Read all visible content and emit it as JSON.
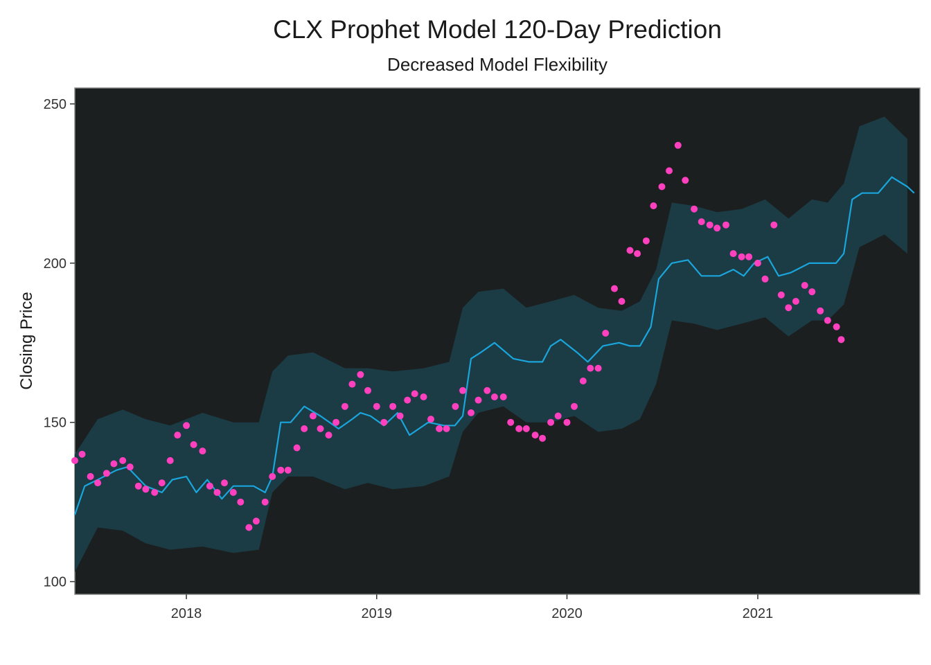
{
  "chart_data": {
    "type": "line",
    "title": "CLX Prophet Model 120-Day Prediction",
    "subtitle": "Decreased Model Flexibility",
    "ylabel": "Closing Price",
    "xlabel": "",
    "xlim": [
      "2017-06-01",
      "2021-11-08"
    ],
    "ylim": [
      96,
      255
    ],
    "x_ticks": [
      "2018-01-01",
      "2019-01-01",
      "2020-01-01",
      "2021-01-01"
    ],
    "x_tick_labels": [
      "2018",
      "2019",
      "2020",
      "2021"
    ],
    "y_ticks": [
      100,
      150,
      200,
      250
    ],
    "grid": false,
    "legend": "none",
    "colors": {
      "panel": "#1c1f1f",
      "band": "#1b3b45",
      "line": "#1aa6dc",
      "points": "#ff40bf",
      "axis": "#888888"
    },
    "series": [
      {
        "kind": "band",
        "x": [
          "2017-06-01",
          "2017-07-15",
          "2017-09-01",
          "2017-10-15",
          "2017-12-01",
          "2018-02-01",
          "2018-04-01",
          "2018-05-20",
          "2018-06-15",
          "2018-07-15",
          "2018-09-01",
          "2018-11-01",
          "2018-12-15",
          "2019-02-01",
          "2019-04-01",
          "2019-05-20",
          "2019-06-15",
          "2019-07-15",
          "2019-09-01",
          "2019-10-15",
          "2019-12-01",
          "2020-01-15",
          "2020-03-01",
          "2020-04-15",
          "2020-05-20",
          "2020-06-20",
          "2020-07-20",
          "2020-09-01",
          "2020-10-15",
          "2020-12-01",
          "2021-01-15",
          "2021-03-01",
          "2021-04-15",
          "2021-05-15",
          "2021-06-15",
          "2021-07-15",
          "2021-09-01",
          "2021-10-15"
        ],
        "lower": [
          103,
          117,
          116,
          112,
          110,
          111,
          109,
          110,
          128,
          133,
          133,
          129,
          131,
          129,
          130,
          133,
          147,
          153,
          155,
          150,
          150,
          152,
          147,
          148,
          151,
          162,
          182,
          181,
          179,
          181,
          183,
          177,
          182,
          182,
          187,
          205,
          209,
          203
        ],
        "upper": [
          140,
          151,
          154,
          151,
          149,
          153,
          150,
          150,
          166,
          171,
          172,
          167,
          167,
          166,
          167,
          169,
          186,
          191,
          192,
          186,
          188,
          190,
          186,
          185,
          188,
          198,
          219,
          218,
          216,
          217,
          220,
          214,
          220,
          219,
          225,
          243,
          246,
          239
        ]
      },
      {
        "kind": "line",
        "name": "",
        "x": [
          "2017-06-01",
          "2017-06-20",
          "2017-07-15",
          "2017-08-20",
          "2017-09-10",
          "2017-10-15",
          "2017-11-15",
          "2017-12-05",
          "2018-01-01",
          "2018-01-20",
          "2018-02-10",
          "2018-03-10",
          "2018-04-01",
          "2018-05-10",
          "2018-06-01",
          "2018-06-15",
          "2018-07-01",
          "2018-07-20",
          "2018-08-15",
          "2018-09-15",
          "2018-10-20",
          "2018-11-15",
          "2018-12-01",
          "2018-12-20",
          "2019-01-15",
          "2019-02-10",
          "2019-03-05",
          "2019-04-10",
          "2019-05-10",
          "2019-05-31",
          "2019-06-15",
          "2019-07-01",
          "2019-07-20",
          "2019-08-15",
          "2019-09-20",
          "2019-10-20",
          "2019-11-15",
          "2019-12-01",
          "2019-12-20",
          "2020-01-20",
          "2020-02-10",
          "2020-03-10",
          "2020-04-10",
          "2020-05-01",
          "2020-05-20",
          "2020-06-10",
          "2020-06-25",
          "2020-07-20",
          "2020-08-20",
          "2020-09-15",
          "2020-10-20",
          "2020-11-15",
          "2020-12-05",
          "2020-12-25",
          "2021-01-20",
          "2021-02-10",
          "2021-03-05",
          "2021-04-10",
          "2021-05-10",
          "2021-05-31",
          "2021-06-15",
          "2021-07-01",
          "2021-07-20",
          "2021-08-20",
          "2021-09-15",
          "2021-10-15",
          "2021-10-28"
        ],
        "y": [
          121,
          130,
          132,
          135,
          136,
          130,
          128,
          132,
          133,
          128,
          132,
          126,
          130,
          130,
          128,
          133,
          150,
          150,
          155,
          152,
          148,
          151,
          153,
          152,
          149,
          153,
          146,
          150,
          149,
          149,
          152,
          170,
          172,
          175,
          170,
          169,
          169,
          174,
          176,
          172,
          169,
          174,
          175,
          174,
          174,
          180,
          195,
          200,
          201,
          196,
          196,
          198,
          196,
          200,
          202,
          196,
          197,
          200,
          200,
          200,
          203,
          220,
          222,
          222,
          227,
          224,
          222
        ]
      },
      {
        "kind": "scatter",
        "name": "",
        "x": [
          "2017-06-01",
          "2017-06-15",
          "2017-07-01",
          "2017-07-15",
          "2017-08-01",
          "2017-08-15",
          "2017-09-01",
          "2017-09-15",
          "2017-10-01",
          "2017-10-15",
          "2017-11-01",
          "2017-11-15",
          "2017-12-01",
          "2017-12-15",
          "2018-01-01",
          "2018-01-15",
          "2018-02-01",
          "2018-02-15",
          "2018-03-01",
          "2018-03-15",
          "2018-04-01",
          "2018-04-15",
          "2018-05-01",
          "2018-05-15",
          "2018-06-01",
          "2018-06-15",
          "2018-07-01",
          "2018-07-15",
          "2018-08-01",
          "2018-08-15",
          "2018-09-01",
          "2018-09-15",
          "2018-10-01",
          "2018-10-15",
          "2018-11-01",
          "2018-11-15",
          "2018-12-01",
          "2018-12-15",
          "2019-01-01",
          "2019-01-15",
          "2019-02-01",
          "2019-02-15",
          "2019-03-01",
          "2019-03-15",
          "2019-04-01",
          "2019-04-15",
          "2019-05-01",
          "2019-05-15",
          "2019-06-01",
          "2019-06-15",
          "2019-07-01",
          "2019-07-15",
          "2019-08-01",
          "2019-08-15",
          "2019-09-01",
          "2019-09-15",
          "2019-10-01",
          "2019-10-15",
          "2019-11-01",
          "2019-11-15",
          "2019-12-01",
          "2019-12-15",
          "2020-01-01",
          "2020-01-15",
          "2020-02-01",
          "2020-02-15",
          "2020-03-01",
          "2020-03-15",
          "2020-04-01",
          "2020-04-15",
          "2020-05-01",
          "2020-05-15",
          "2020-06-01",
          "2020-06-15",
          "2020-07-01",
          "2020-07-15",
          "2020-08-01",
          "2020-08-15",
          "2020-09-01",
          "2020-09-15",
          "2020-10-01",
          "2020-10-15",
          "2020-11-01",
          "2020-11-15",
          "2020-12-01",
          "2020-12-15",
          "2021-01-01",
          "2021-01-15",
          "2021-02-01",
          "2021-02-15",
          "2021-03-01",
          "2021-03-15",
          "2021-04-01",
          "2021-04-15",
          "2021-05-01",
          "2021-05-15",
          "2021-06-01",
          "2021-06-10"
        ],
        "y": [
          138,
          140,
          133,
          131,
          134,
          137,
          138,
          136,
          130,
          129,
          128,
          131,
          138,
          146,
          149,
          143,
          141,
          130,
          128,
          131,
          128,
          125,
          117,
          119,
          125,
          133,
          135,
          135,
          142,
          148,
          152,
          148,
          146,
          150,
          155,
          162,
          165,
          160,
          155,
          150,
          155,
          152,
          157,
          159,
          158,
          151,
          148,
          148,
          155,
          160,
          153,
          157,
          160,
          158,
          158,
          150,
          148,
          148,
          146,
          145,
          150,
          152,
          150,
          155,
          163,
          167,
          167,
          178,
          192,
          188,
          204,
          203,
          207,
          218,
          224,
          229,
          237,
          226,
          217,
          213,
          212,
          211,
          212,
          203,
          202,
          202,
          200,
          195,
          212,
          190,
          186,
          188,
          193,
          191,
          185,
          182,
          180,
          176
        ]
      }
    ]
  }
}
